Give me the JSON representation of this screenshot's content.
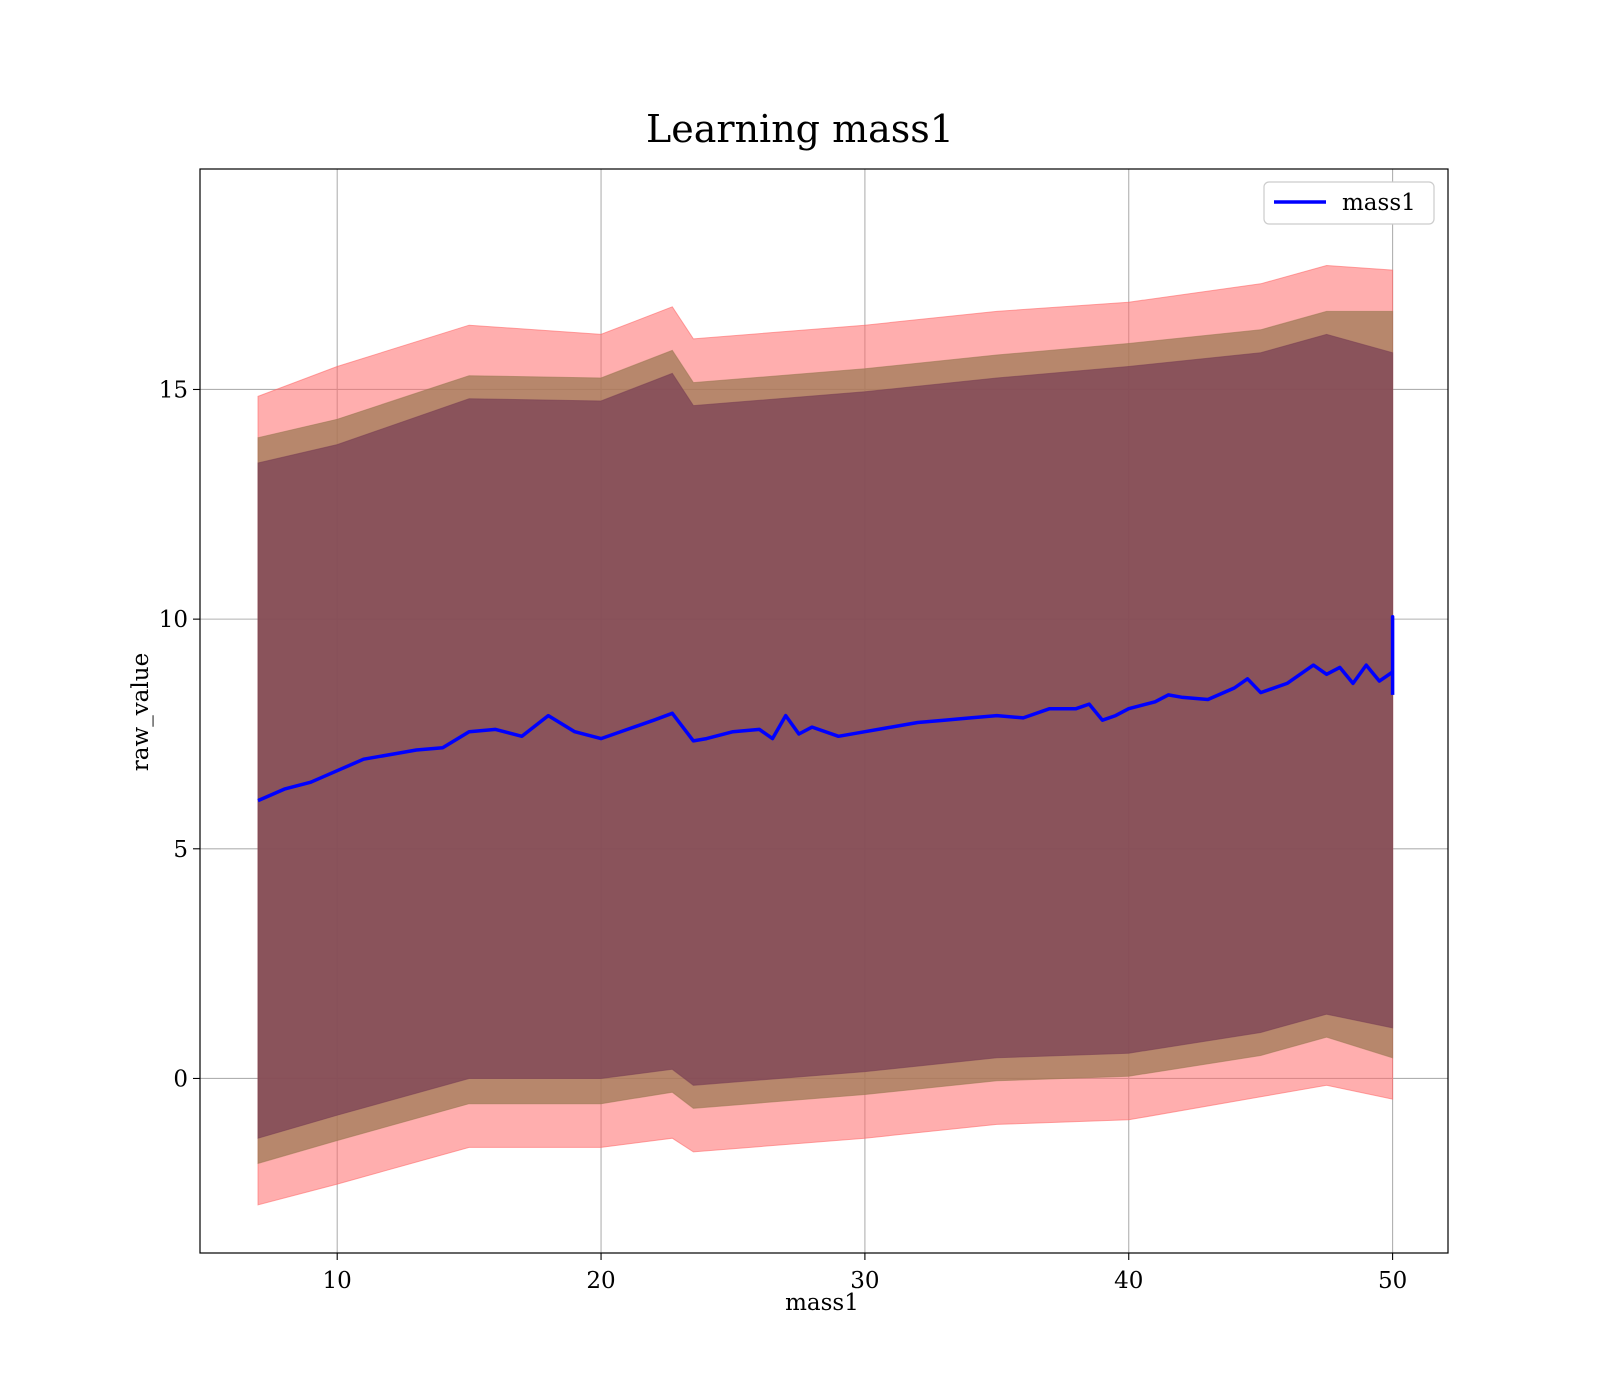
{
  "chart_data": {
    "type": "line",
    "title": "Learning mass1",
    "xlabel": "mass1",
    "ylabel": "raw_value",
    "xlim": [
      4.8,
      52.1
    ],
    "ylim": [
      -3.8,
      19.8
    ],
    "xticks": [
      10,
      20,
      30,
      40,
      50
    ],
    "yticks": [
      0,
      5,
      10,
      15
    ],
    "grid": true,
    "legend_position": "upper right",
    "series": [
      {
        "name": "mass1",
        "color": "#0000ff",
        "x": [
          7,
          8,
          9,
          10,
          11,
          12,
          13,
          14,
          15,
          16,
          17,
          18,
          19,
          20,
          21,
          22,
          22.7,
          23.5,
          24,
          25,
          26,
          26.5,
          27,
          27.5,
          28,
          29,
          30,
          31,
          32,
          33,
          34,
          35,
          36,
          37,
          38,
          38.5,
          39,
          39.5,
          40,
          41,
          41.5,
          42,
          43,
          44,
          44.5,
          45,
          46,
          47,
          47.5,
          48,
          48.5,
          49,
          49.5,
          50,
          50,
          50
        ],
        "y": [
          6.05,
          6.3,
          6.45,
          6.7,
          6.95,
          7.05,
          7.15,
          7.2,
          7.55,
          7.6,
          7.45,
          7.9,
          7.55,
          7.4,
          7.6,
          7.8,
          7.95,
          7.35,
          7.4,
          7.55,
          7.6,
          7.4,
          7.9,
          7.5,
          7.65,
          7.45,
          7.55,
          7.65,
          7.75,
          7.8,
          7.85,
          7.9,
          7.85,
          8.05,
          8.05,
          8.15,
          7.8,
          7.9,
          8.05,
          8.2,
          8.35,
          8.3,
          8.25,
          8.5,
          8.7,
          8.4,
          8.6,
          9.0,
          8.8,
          8.95,
          8.6,
          9.0,
          8.65,
          8.85,
          10.05,
          8.35
        ]
      }
    ],
    "bands": [
      {
        "label": "",
        "color": "#ff6b6b",
        "opacity": 0.55,
        "x": [
          7,
          10,
          15,
          20,
          22.7,
          23.5,
          30,
          35,
          40,
          45,
          47.5,
          50
        ],
        "upper": [
          14.85,
          15.5,
          16.4,
          16.2,
          16.8,
          16.1,
          16.4,
          16.7,
          16.9,
          17.3,
          17.7,
          17.6
        ],
        "lower": [
          -2.75,
          -2.3,
          -1.5,
          -1.5,
          -1.3,
          -1.6,
          -1.3,
          -1.0,
          -0.9,
          -0.4,
          -0.15,
          -0.45
        ]
      },
      {
        "label": "",
        "color": "#9f7a55",
        "opacity": 0.75,
        "x": [
          7,
          10,
          15,
          20,
          22.7,
          23.5,
          30,
          35,
          40,
          45,
          47.5,
          50
        ],
        "upper": [
          13.95,
          14.35,
          15.3,
          15.25,
          15.85,
          15.15,
          15.45,
          15.75,
          16.0,
          16.3,
          16.7,
          16.7
        ],
        "lower": [
          -1.85,
          -1.35,
          -0.55,
          -0.55,
          -0.3,
          -0.65,
          -0.35,
          -0.05,
          0.05,
          0.5,
          0.9,
          0.45
        ]
      },
      {
        "label": "",
        "color": "#7b4155",
        "opacity": 0.75,
        "x": [
          7,
          10,
          15,
          20,
          22.7,
          23.5,
          30,
          35,
          40,
          45,
          47.5,
          50
        ],
        "upper": [
          13.4,
          13.8,
          14.8,
          14.75,
          15.35,
          14.65,
          14.95,
          15.25,
          15.5,
          15.8,
          16.2,
          15.8
        ],
        "lower": [
          -1.3,
          -0.8,
          0.0,
          0.0,
          0.2,
          -0.15,
          0.15,
          0.45,
          0.55,
          1.0,
          1.4,
          1.1
        ]
      }
    ]
  }
}
